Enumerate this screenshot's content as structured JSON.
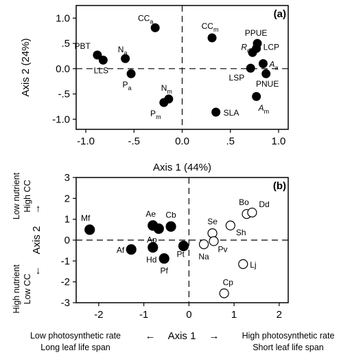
{
  "chart_data": [
    {
      "type": "scatter",
      "panel_label": "(a)",
      "xlabel": "Axis 1 (44%)",
      "ylabel": "Axis 2 (24%)",
      "xlim": [
        -1.1,
        1.1
      ],
      "ylim": [
        -1.2,
        1.25
      ],
      "xticks": [
        "-1.0",
        "-.5",
        "0.0",
        ".5",
        "1.0"
      ],
      "yticks": [
        "1.0",
        ".5",
        "0.0",
        "-.5",
        "-1.0"
      ],
      "points": [
        {
          "name": "CC_a",
          "x": -0.28,
          "y": 0.81
        },
        {
          "name": "CC_m",
          "x": 0.31,
          "y": 0.61
        },
        {
          "name": "PBT",
          "x": -0.88,
          "y": 0.27
        },
        {
          "name": "LLS",
          "x": -0.82,
          "y": 0.17
        },
        {
          "name": "N_a",
          "x": -0.59,
          "y": 0.2
        },
        {
          "name": "P_a",
          "x": -0.53,
          "y": -0.1
        },
        {
          "name": "N_m",
          "x": -0.14,
          "y": -0.6
        },
        {
          "name": "P_m",
          "x": -0.19,
          "y": -0.67
        },
        {
          "name": "PPUE",
          "x": 0.78,
          "y": 0.5
        },
        {
          "name": "LCP",
          "x": 0.77,
          "y": 0.4
        },
        {
          "name": "R_d",
          "x": 0.73,
          "y": 0.32
        },
        {
          "name": "A_a",
          "x": 0.84,
          "y": 0.1
        },
        {
          "name": "LSP",
          "x": 0.71,
          "y": 0.01
        },
        {
          "name": "PNUE",
          "x": 0.87,
          "y": -0.1
        },
        {
          "name": "A_m",
          "x": 0.77,
          "y": -0.55
        },
        {
          "name": "SLA",
          "x": 0.35,
          "y": -0.86
        }
      ]
    },
    {
      "type": "scatter",
      "panel_label": "(b)",
      "xlabel": "Axis 1",
      "ylabel": "Axis 2",
      "xlim": [
        -2.5,
        2.2
      ],
      "ylim": [
        -3.0,
        3.0
      ],
      "xticks": [
        "-2",
        "-1",
        "0",
        "1",
        "2"
      ],
      "yticks": [
        "3",
        "2",
        "1",
        "0",
        "-1",
        "-2",
        "-3"
      ],
      "y_top_annotation": [
        "Low nutrient",
        "High CC"
      ],
      "y_bottom_annotation": [
        "High nutrient",
        "Low CC"
      ],
      "x_left_annotation": [
        "Low photosynthetic rate",
        "Long leaf life span"
      ],
      "x_right_annotation": [
        "High photosynthetic rate",
        "Short leaf life span"
      ],
      "series": [
        {
          "name": "filled",
          "points": [
            {
              "name": "Mf",
              "x": -2.2,
              "y": 0.5
            },
            {
              "name": "Ae",
              "x": -0.8,
              "y": 0.7
            },
            {
              "name": "Ap",
              "x": -0.67,
              "y": 0.55
            },
            {
              "name": "Cb",
              "x": -0.4,
              "y": 0.65
            },
            {
              "name": "Af",
              "x": -1.28,
              "y": -0.45
            },
            {
              "name": "Hd",
              "x": -0.8,
              "y": -0.35
            },
            {
              "name": "Pf",
              "x": -0.55,
              "y": -0.88
            },
            {
              "name": "Pt",
              "x": -0.12,
              "y": -0.28
            }
          ]
        },
        {
          "name": "open",
          "points": [
            {
              "name": "Bo",
              "x": 1.28,
              "y": 1.25
            },
            {
              "name": "Dd",
              "x": 1.4,
              "y": 1.32
            },
            {
              "name": "Se",
              "x": 0.52,
              "y": 0.33
            },
            {
              "name": "Sh",
              "x": 0.92,
              "y": 0.7
            },
            {
              "name": "Pv",
              "x": 0.55,
              "y": -0.05
            },
            {
              "name": "Na",
              "x": 0.33,
              "y": -0.2
            },
            {
              "name": "Lj",
              "x": 1.2,
              "y": -1.15
            },
            {
              "name": "Cp",
              "x": 0.78,
              "y": -2.55
            }
          ]
        }
      ]
    }
  ]
}
